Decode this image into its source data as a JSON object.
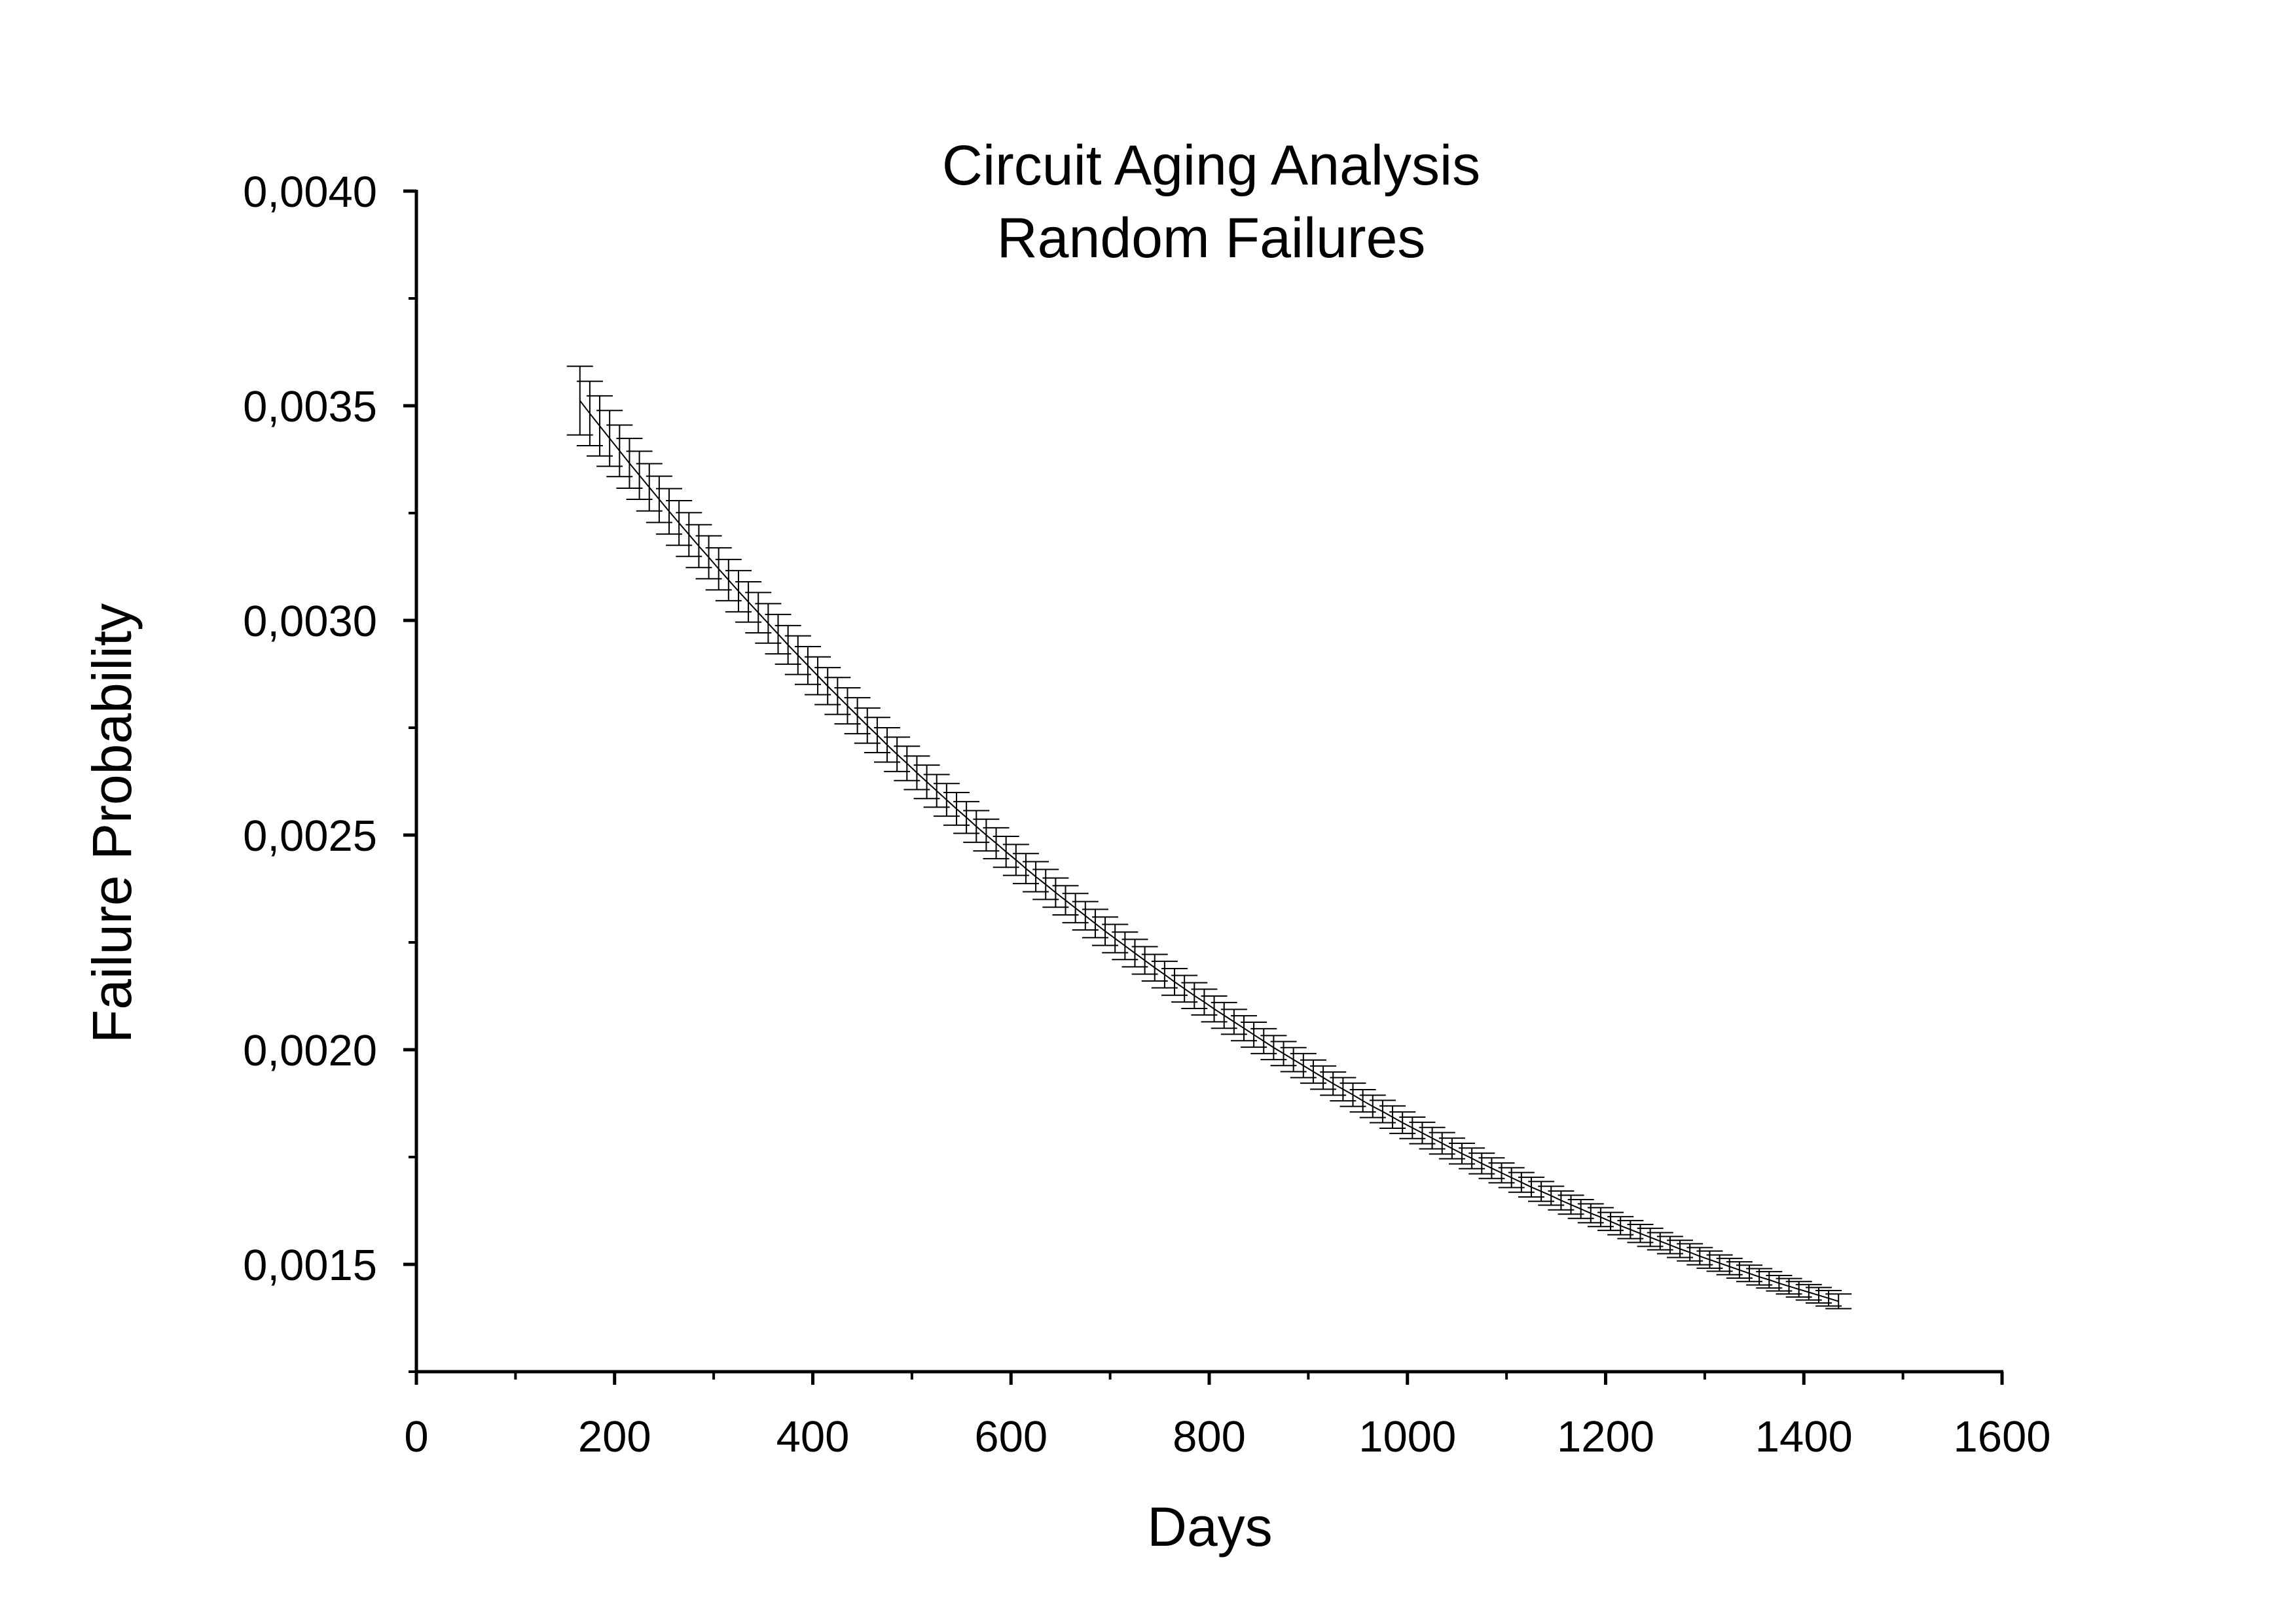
{
  "chart_data": {
    "type": "line",
    "title": [
      "Circuit Aging Analysis",
      "Random Failures"
    ],
    "xlabel": "Days",
    "ylabel": "Failure Probability",
    "xlim": [
      0,
      1600
    ],
    "ylim": [
      0.00125,
      0.004
    ],
    "x_ticks": [
      0,
      200,
      400,
      600,
      800,
      1000,
      1200,
      1400,
      1600
    ],
    "x_tick_labels": [
      "0",
      "200",
      "400",
      "600",
      "800",
      "1000",
      "1200",
      "1400",
      "1600"
    ],
    "y_ticks": [
      0.0015,
      0.002,
      0.0025,
      0.003,
      0.0035,
      0.004
    ],
    "y_tick_labels": [
      "0,0015",
      "0,0020",
      "0,0025",
      "0,0030",
      "0,0035",
      "0,0040"
    ],
    "grid": false,
    "legend": "none",
    "line_color": "#000000",
    "error_bars": true,
    "series": [
      {
        "x": [
          165,
          175,
          185,
          195,
          205,
          215,
          225,
          235,
          245,
          255,
          265,
          275,
          285,
          295,
          305,
          315,
          325,
          335,
          345,
          355,
          365,
          375,
          385,
          395,
          405,
          415,
          425,
          435,
          445,
          455,
          465,
          475,
          485,
          495,
          505,
          515,
          525,
          535,
          545,
          555,
          565,
          575,
          585,
          595,
          605,
          615,
          625,
          635,
          645,
          655,
          665,
          675,
          685,
          695,
          705,
          715,
          725,
          735,
          745,
          755,
          765,
          775,
          785,
          795,
          805,
          815,
          825,
          835,
          845,
          855,
          865,
          875,
          885,
          895,
          905,
          915,
          925,
          935,
          945,
          955,
          965,
          975,
          985,
          995,
          1005,
          1015,
          1025,
          1035,
          1045,
          1055,
          1065,
          1075,
          1085,
          1095,
          1105,
          1115,
          1125,
          1135,
          1145,
          1155,
          1165,
          1175,
          1185,
          1195,
          1205,
          1215,
          1225,
          1235,
          1245,
          1255,
          1265,
          1275,
          1285,
          1295,
          1305,
          1315,
          1325,
          1335,
          1345,
          1355,
          1365,
          1375,
          1385,
          1395,
          1405,
          1415,
          1425,
          1435
        ],
        "y": [
          0.003512,
          0.003482,
          0.003453,
          0.003424,
          0.003395,
          0.003366,
          0.003338,
          0.00331,
          0.003282,
          0.003254,
          0.003227,
          0.0032,
          0.003173,
          0.003147,
          0.00312,
          0.003094,
          0.003068,
          0.003043,
          0.003018,
          0.002993,
          0.002968,
          0.002943,
          0.002919,
          0.002895,
          0.002871,
          0.002847,
          0.002824,
          0.002801,
          0.002778,
          0.002755,
          0.002733,
          0.00271,
          0.002688,
          0.002667,
          0.002645,
          0.002624,
          0.002603,
          0.002582,
          0.002561,
          0.002541,
          0.00252,
          0.0025,
          0.002481,
          0.002461,
          0.002442,
          0.002422,
          0.002403,
          0.002385,
          0.002366,
          0.002348,
          0.00233,
          0.002312,
          0.002294,
          0.002276,
          0.002259,
          0.002242,
          0.002225,
          0.002208,
          0.002191,
          0.002175,
          0.002158,
          0.002142,
          0.002126,
          0.002111,
          0.002095,
          0.00208,
          0.002065,
          0.00205,
          0.002035,
          0.00202,
          0.002005,
          0.001991,
          0.001977,
          0.001963,
          0.001949,
          0.001935,
          0.001921,
          0.001908,
          0.001895,
          0.001881,
          0.001868,
          0.001856,
          0.001843,
          0.00183,
          0.001818,
          0.001806,
          0.001794,
          0.001782,
          0.00177,
          0.001758,
          0.001747,
          0.001735,
          0.001724,
          0.001713,
          0.001702,
          0.001691,
          0.00168,
          0.00167,
          0.00166,
          0.001649,
          0.001639,
          0.001629,
          0.001619,
          0.00161,
          0.0016,
          0.00159,
          0.001581,
          0.001572,
          0.001563,
          0.001554,
          0.001545,
          0.001536,
          0.001528,
          0.001519,
          0.001511,
          0.001503,
          0.001495,
          0.001487,
          0.001479,
          0.001471,
          0.001464,
          0.001456,
          0.001449,
          0.001442,
          0.001435,
          0.001428,
          0.001421,
          0.001414
        ],
        "error": [
          8e-05,
          7.5e-05,
          7e-05,
          6.5e-05,
          6e-05,
          5.8e-05,
          5.6e-05,
          5.5e-05,
          5.4e-05,
          5.3e-05,
          5.2e-05,
          5.1e-05,
          5e-05,
          5e-05,
          4.9e-05,
          4.8e-05,
          4.8e-05,
          4.7e-05,
          4.7e-05,
          4.6e-05,
          4.6e-05,
          4.5e-05,
          4.5e-05,
          4.4e-05,
          4.4e-05,
          4.3e-05,
          4.3e-05,
          4.2e-05,
          4.2e-05,
          4.1e-05,
          4.1e-05,
          4e-05,
          4e-05,
          4e-05,
          3.9e-05,
          3.9e-05,
          3.8e-05,
          3.8e-05,
          3.8e-05,
          3.7e-05,
          3.7e-05,
          3.7e-05,
          3.6e-05,
          3.6e-05,
          3.6e-05,
          3.5e-05,
          3.5e-05,
          3.5e-05,
          3.4e-05,
          3.4e-05,
          3.4e-05,
          3.3e-05,
          3.3e-05,
          3.3e-05,
          3.3e-05,
          3.2e-05,
          3.2e-05,
          3.2e-05,
          3.1e-05,
          3.1e-05,
          3.1e-05,
          3.1e-05,
          3e-05,
          3e-05,
          3e-05,
          3e-05,
          2.9e-05,
          2.9e-05,
          2.9e-05,
          2.9e-05,
          2.8e-05,
          2.8e-05,
          2.8e-05,
          2.8e-05,
          2.7e-05,
          2.7e-05,
          2.7e-05,
          2.7e-05,
          2.7e-05,
          2.6e-05,
          2.6e-05,
          2.6e-05,
          2.6e-05,
          2.5e-05,
          2.5e-05,
          2.5e-05,
          2.5e-05,
          2.5e-05,
          2.4e-05,
          2.4e-05,
          2.4e-05,
          2.4e-05,
          2.4e-05,
          2.3e-05,
          2.3e-05,
          2.3e-05,
          2.3e-05,
          2.3e-05,
          2.2e-05,
          2.2e-05,
          2.2e-05,
          2.2e-05,
          2.2e-05,
          2.2e-05,
          2.1e-05,
          2.1e-05,
          2.1e-05,
          2.1e-05,
          2.1e-05,
          2e-05,
          2e-05,
          2e-05,
          2e-05,
          2e-05,
          2e-05,
          1.9e-05,
          1.9e-05,
          1.9e-05,
          1.9e-05,
          1.9e-05,
          1.9e-05,
          1.8e-05,
          1.8e-05,
          1.8e-05,
          1.8e-05,
          1.8e-05,
          1.8e-05,
          1.7e-05
        ]
      }
    ]
  }
}
